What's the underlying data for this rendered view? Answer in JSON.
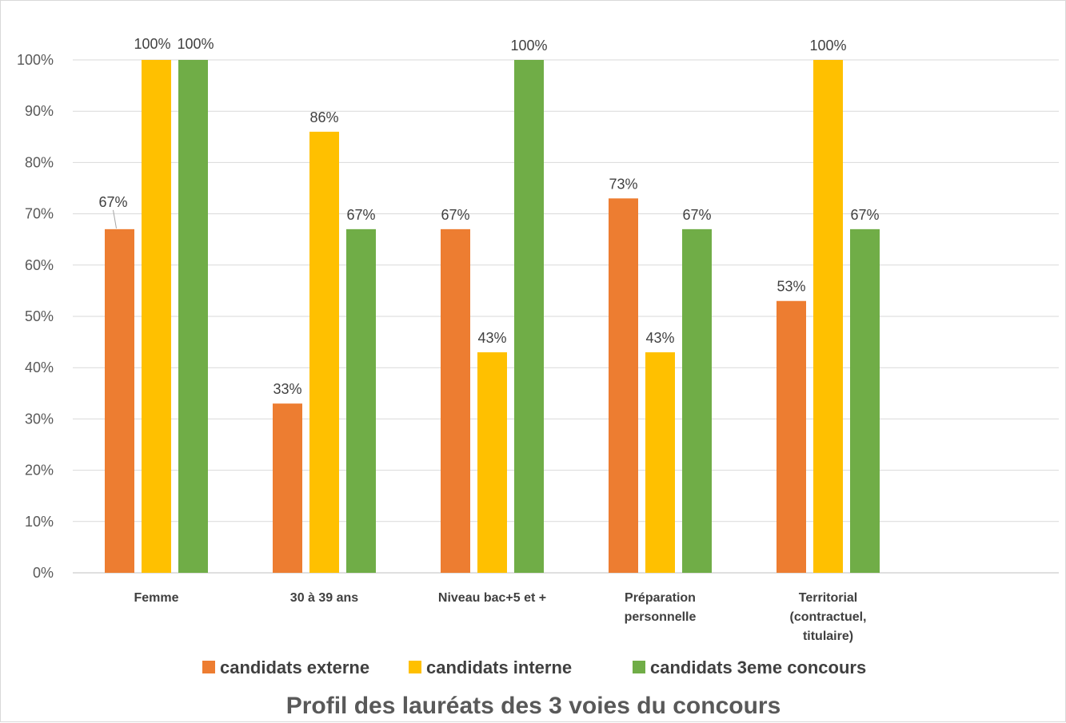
{
  "chart_data": {
    "type": "bar",
    "title": "Profil des lauréats des 3 voies du concours",
    "categories": [
      [
        "Femme"
      ],
      [
        "30 à 39 ans"
      ],
      [
        "Niveau bac+5 et +"
      ],
      [
        "Préparation",
        "personnelle"
      ],
      [
        "Territorial",
        "(contractuel,",
        "titulaire)"
      ]
    ],
    "series": [
      {
        "name": "candidats externe",
        "color": "#ED7D31",
        "values": [
          0.67,
          0.33,
          0.67,
          0.73,
          0.53
        ],
        "labels": [
          "67%",
          "33%",
          "67%",
          "73%",
          "53%"
        ]
      },
      {
        "name": "candidats interne",
        "color": "#FFC000",
        "values": [
          1.0,
          0.86,
          0.43,
          0.43,
          1.0
        ],
        "labels": [
          "100%",
          "86%",
          "43%",
          "43%",
          "100%"
        ]
      },
      {
        "name": "candidats 3eme concours",
        "color": "#70AD47",
        "values": [
          1.0,
          0.67,
          1.0,
          0.67,
          0.67
        ],
        "labels": [
          "100%",
          "67%",
          "100%",
          "67%",
          "67%"
        ]
      }
    ],
    "ylim": [
      0,
      1
    ],
    "yticks": [
      "0%",
      "10%",
      "20%",
      "30%",
      "40%",
      "50%",
      "60%",
      "70%",
      "80%",
      "90%",
      "100%"
    ],
    "grid": true,
    "legend_position": "bottom"
  }
}
